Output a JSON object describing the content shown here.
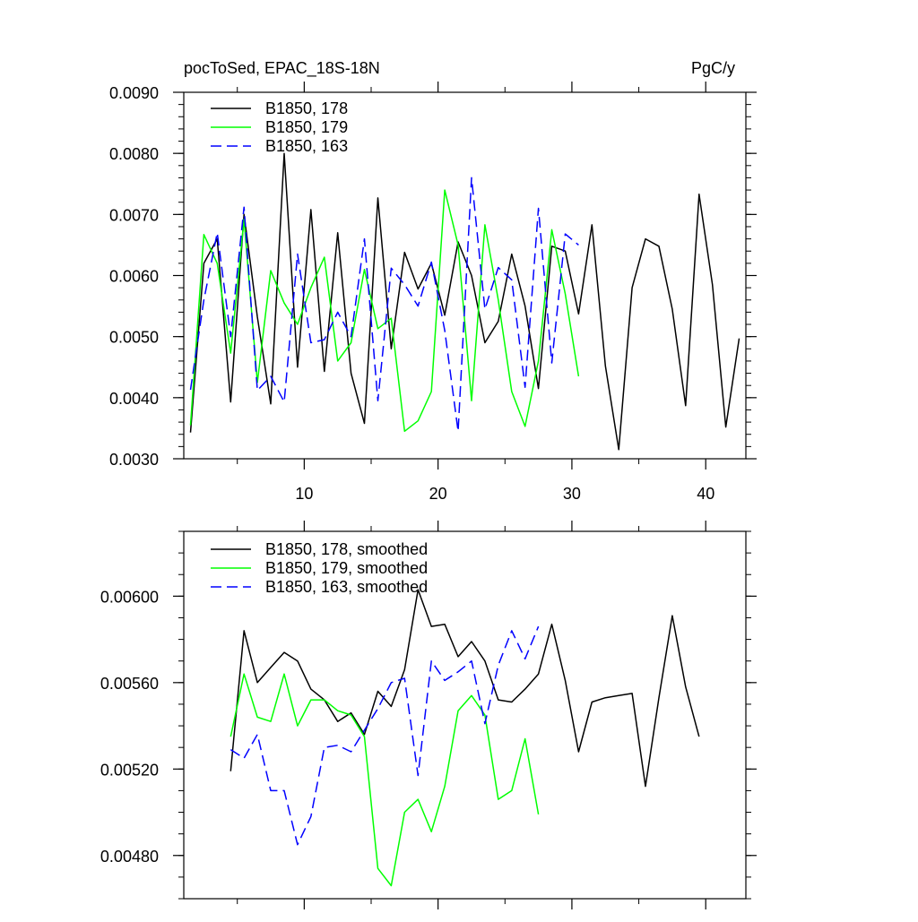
{
  "chart_data": [
    {
      "type": "line",
      "title_left": "pocToSed, EPAC_18S-18N",
      "title_right": "PgC/y",
      "xlim": [
        1,
        43
      ],
      "ylim": [
        0.003,
        0.009
      ],
      "xticks": [
        10,
        20,
        30,
        40
      ],
      "xtick_labels": [
        "10",
        "20",
        "30",
        "40"
      ],
      "yticks": [
        0.003,
        0.004,
        0.005,
        0.006,
        0.007,
        0.008,
        0.009
      ],
      "ytick_labels": [
        "0.0030",
        "0.0040",
        "0.0050",
        "0.0060",
        "0.0070",
        "0.0080",
        "0.0090"
      ],
      "legend_position": "top-left",
      "series": [
        {
          "name": "B1850, 178",
          "color": "#000000",
          "dash": "solid",
          "x": [
            1.5,
            2.5,
            3.5,
            4.5,
            5.5,
            6.5,
            7.5,
            8.5,
            9.5,
            10.5,
            11.5,
            12.5,
            13.5,
            14.5,
            15.5,
            16.5,
            17.5,
            18.5,
            19.5,
            20.5,
            21.5,
            22.5,
            23.5,
            24.5,
            25.5,
            26.5,
            27.5,
            28.5,
            29.5,
            30.5,
            31.5,
            32.5,
            33.5,
            34.5,
            35.5,
            36.5,
            37.5,
            38.5,
            39.5,
            40.5,
            41.5,
            42.5
          ],
          "y": [
            0.00343,
            0.0062,
            0.0066,
            0.00393,
            0.007,
            0.00532,
            0.0039,
            0.008,
            0.0045,
            0.00708,
            0.00443,
            0.0067,
            0.0044,
            0.00358,
            0.00727,
            0.0048,
            0.00638,
            0.00578,
            0.0062,
            0.00535,
            0.00655,
            0.006,
            0.0049,
            0.00525,
            0.00635,
            0.0055,
            0.00415,
            0.00648,
            0.0064,
            0.00537,
            0.00683,
            0.00452,
            0.00315,
            0.0058,
            0.0066,
            0.00648,
            0.00545,
            0.00387,
            0.00733,
            0.00585,
            0.00352,
            0.00497
          ]
        },
        {
          "name": "B1850, 179",
          "color": "#00ff00",
          "dash": "solid",
          "x": [
            1.5,
            2.5,
            3.5,
            4.5,
            5.5,
            6.5,
            7.5,
            8.5,
            9.5,
            10.5,
            11.5,
            12.5,
            13.5,
            14.5,
            15.5,
            16.5,
            17.5,
            18.5,
            19.5,
            20.5,
            21.5,
            22.5,
            23.5,
            24.5,
            25.5,
            26.5,
            27.5,
            28.5,
            29.5,
            30.5
          ],
          "y": [
            0.00355,
            0.00667,
            0.0062,
            0.00473,
            0.00692,
            0.00425,
            0.00608,
            0.00555,
            0.0052,
            0.0058,
            0.0063,
            0.0046,
            0.0049,
            0.0061,
            0.00513,
            0.0053,
            0.00345,
            0.00362,
            0.0041,
            0.0074,
            0.0065,
            0.00395,
            0.00683,
            0.0056,
            0.0041,
            0.00353,
            0.0046,
            0.00675,
            0.0057,
            0.00435
          ]
        },
        {
          "name": "B1850, 163",
          "color": "#0000ff",
          "dash": "dashed",
          "x": [
            1.5,
            2.5,
            3.5,
            4.5,
            5.5,
            6.5,
            7.5,
            8.5,
            9.5,
            10.5,
            11.5,
            12.5,
            13.5,
            14.5,
            15.5,
            16.5,
            17.5,
            18.5,
            19.5,
            20.5,
            21.5,
            22.5,
            23.5,
            24.5,
            25.5,
            26.5,
            27.5,
            28.5,
            29.5,
            30.5
          ],
          "y": [
            0.00413,
            0.0056,
            0.0067,
            0.005,
            0.00712,
            0.00412,
            0.00435,
            0.00393,
            0.00635,
            0.0049,
            0.00495,
            0.0054,
            0.005,
            0.0066,
            0.00395,
            0.00612,
            0.00585,
            0.0055,
            0.00622,
            0.0051,
            0.00345,
            0.0076,
            0.00545,
            0.00613,
            0.00593,
            0.00417,
            0.0071,
            0.00457,
            0.00668,
            0.0065
          ]
        }
      ]
    },
    {
      "type": "line",
      "xlim": [
        1,
        43
      ],
      "ylim": [
        0.0046,
        0.0063
      ],
      "xticks": [
        10,
        20,
        30,
        40
      ],
      "yticks": [
        0.0048,
        0.0052,
        0.0056,
        0.006
      ],
      "ytick_labels": [
        "0.00480",
        "0.00520",
        "0.00560",
        "0.00600"
      ],
      "legend_position": "top-left",
      "series": [
        {
          "name": "B1850, 178, smoothed",
          "color": "#000000",
          "dash": "solid",
          "x": [
            4.5,
            5.5,
            6.5,
            7.5,
            8.5,
            9.5,
            10.5,
            11.5,
            12.5,
            13.5,
            14.5,
            15.5,
            16.5,
            17.5,
            18.5,
            19.5,
            20.5,
            21.5,
            22.5,
            23.5,
            24.5,
            25.5,
            26.5,
            27.5,
            28.5,
            29.5,
            30.5,
            31.5,
            32.5,
            33.5,
            34.5,
            35.5,
            36.5,
            37.5,
            38.5,
            39.5
          ],
          "y": [
            0.00519,
            0.00584,
            0.0056,
            0.00567,
            0.00574,
            0.0057,
            0.00557,
            0.00552,
            0.00542,
            0.00546,
            0.00536,
            0.00556,
            0.00549,
            0.00566,
            0.00603,
            0.00586,
            0.00587,
            0.00572,
            0.00579,
            0.0057,
            0.00552,
            0.00551,
            0.00557,
            0.00564,
            0.00587,
            0.00561,
            0.00528,
            0.00551,
            0.00553,
            0.00554,
            0.00555,
            0.00512,
            0.00553,
            0.00591,
            0.00558,
            0.00535
          ]
        },
        {
          "name": "B1850, 179, smoothed",
          "color": "#00ff00",
          "dash": "solid",
          "x": [
            4.5,
            5.5,
            6.5,
            7.5,
            8.5,
            9.5,
            10.5,
            11.5,
            12.5,
            13.5,
            14.5,
            15.5,
            16.5,
            17.5,
            18.5,
            19.5,
            20.5,
            21.5,
            22.5,
            23.5,
            24.5,
            25.5,
            26.5,
            27.5
          ],
          "y": [
            0.00535,
            0.00564,
            0.00544,
            0.00542,
            0.00564,
            0.0054,
            0.00552,
            0.00552,
            0.00547,
            0.00545,
            0.00535,
            0.00474,
            0.00466,
            0.005,
            0.00506,
            0.00491,
            0.00512,
            0.00547,
            0.00554,
            0.00545,
            0.00506,
            0.0051,
            0.00534,
            0.00499
          ]
        },
        {
          "name": "B1850, 163, smoothed",
          "color": "#0000ff",
          "dash": "dashed",
          "x": [
            4.5,
            5.5,
            6.5,
            7.5,
            8.5,
            9.5,
            10.5,
            11.5,
            12.5,
            13.5,
            14.5,
            15.5,
            16.5,
            17.5,
            18.5,
            19.5,
            20.5,
            21.5,
            22.5,
            23.5,
            24.5,
            25.5,
            26.5,
            27.5
          ],
          "y": [
            0.00529,
            0.00525,
            0.00536,
            0.0051,
            0.0051,
            0.00485,
            0.00498,
            0.0053,
            0.00531,
            0.00528,
            0.00538,
            0.00548,
            0.0056,
            0.00562,
            0.00517,
            0.0057,
            0.00561,
            0.00565,
            0.0057,
            0.00541,
            0.00568,
            0.00584,
            0.00571,
            0.00586
          ]
        }
      ]
    }
  ]
}
